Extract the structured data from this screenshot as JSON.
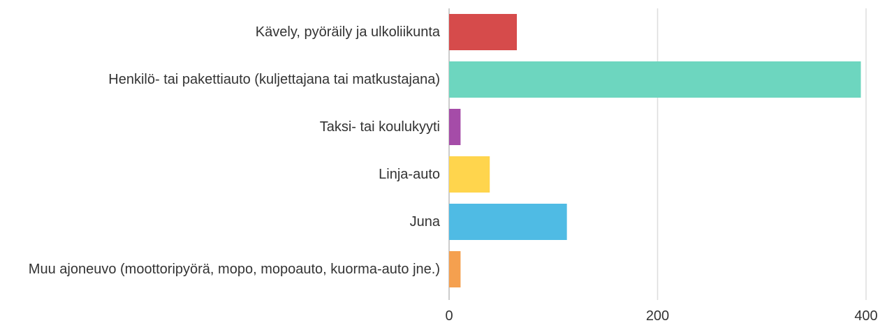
{
  "chart_data": {
    "type": "bar",
    "orientation": "horizontal",
    "categories": [
      "Kävely, pyöräily ja ulkoliikunta",
      "Henkilö- tai pakettiauto (kuljettajana tai matkustajana)",
      "Taksi- tai koulukyyti",
      "Linja-auto",
      "Juna",
      "Muu ajoneuvo (moottoripyörä, mopo, mopoauto, kuorma-auto jne.)"
    ],
    "values": [
      65,
      395,
      11,
      39,
      113,
      11
    ],
    "colors": [
      "#d64b4b",
      "#6dd6bf",
      "#a54ca8",
      "#ffd54d",
      "#4fbbe4",
      "#f5a04f"
    ],
    "xlim": [
      0,
      400
    ],
    "xticks": [
      0,
      200,
      400
    ],
    "grid": true
  }
}
